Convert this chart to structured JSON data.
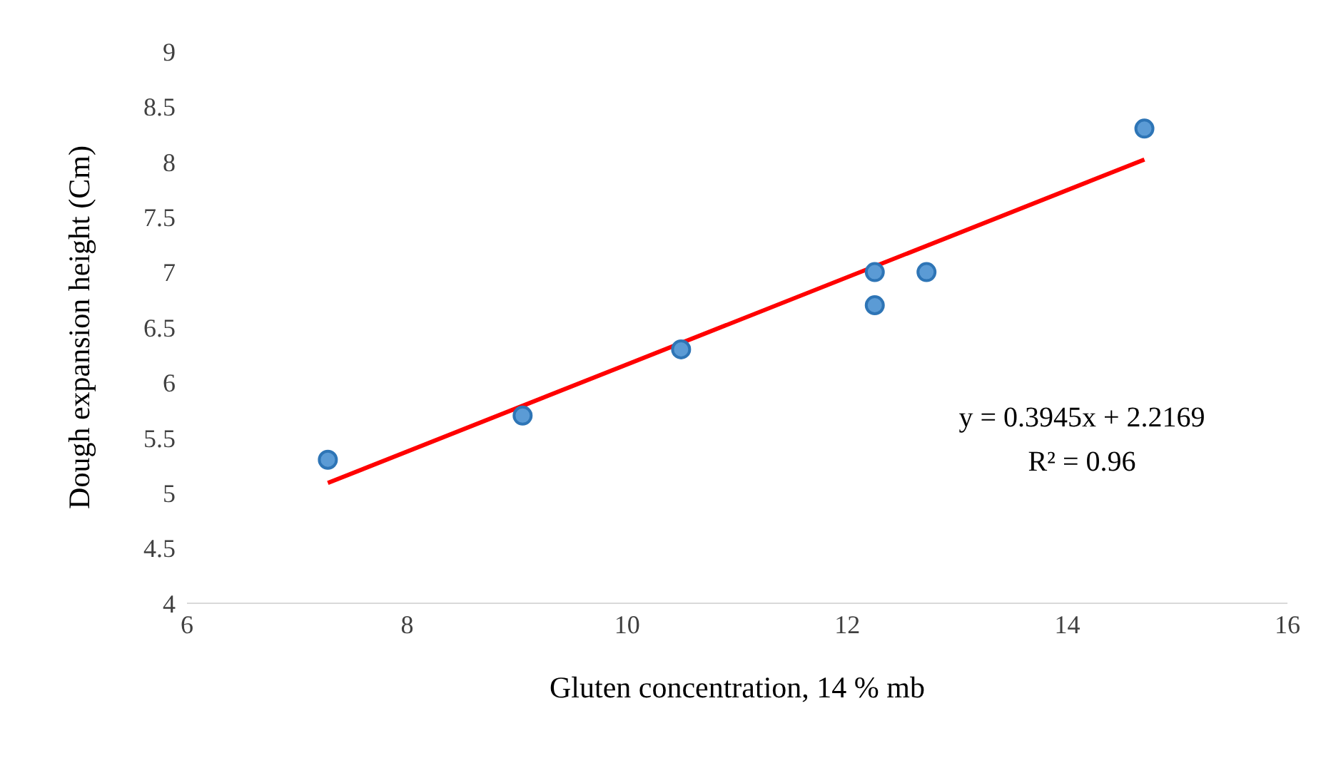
{
  "chart_data": {
    "type": "scatter",
    "xlabel": "Gluten concentration, 14 % mb",
    "ylabel": "Dough expansion height (Cm)",
    "xlim": [
      6,
      16
    ],
    "xticks": [
      6,
      8,
      10,
      12,
      14,
      16
    ],
    "ylim": [
      4,
      9
    ],
    "yticks": [
      4,
      4.5,
      5,
      5.5,
      6,
      6.5,
      7,
      7.5,
      8,
      8.5,
      9
    ],
    "series": [
      {
        "marker": "circle",
        "color": "#2e75b6",
        "x": [
          7.28,
          9.05,
          10.49,
          12.25,
          12.25,
          12.72,
          14.7
        ],
        "values": [
          5.3,
          5.7,
          6.3,
          7.0,
          6.7,
          7.0,
          8.3
        ]
      },
      {
        "type": "line",
        "color": "#ff0000",
        "x": [
          7.28,
          14.7
        ],
        "values": [
          5.09,
          8.02
        ],
        "line_style": "solid"
      }
    ],
    "annotations": [
      "y = 0.3945x + 2.2169",
      "R² = 0.96"
    ]
  }
}
